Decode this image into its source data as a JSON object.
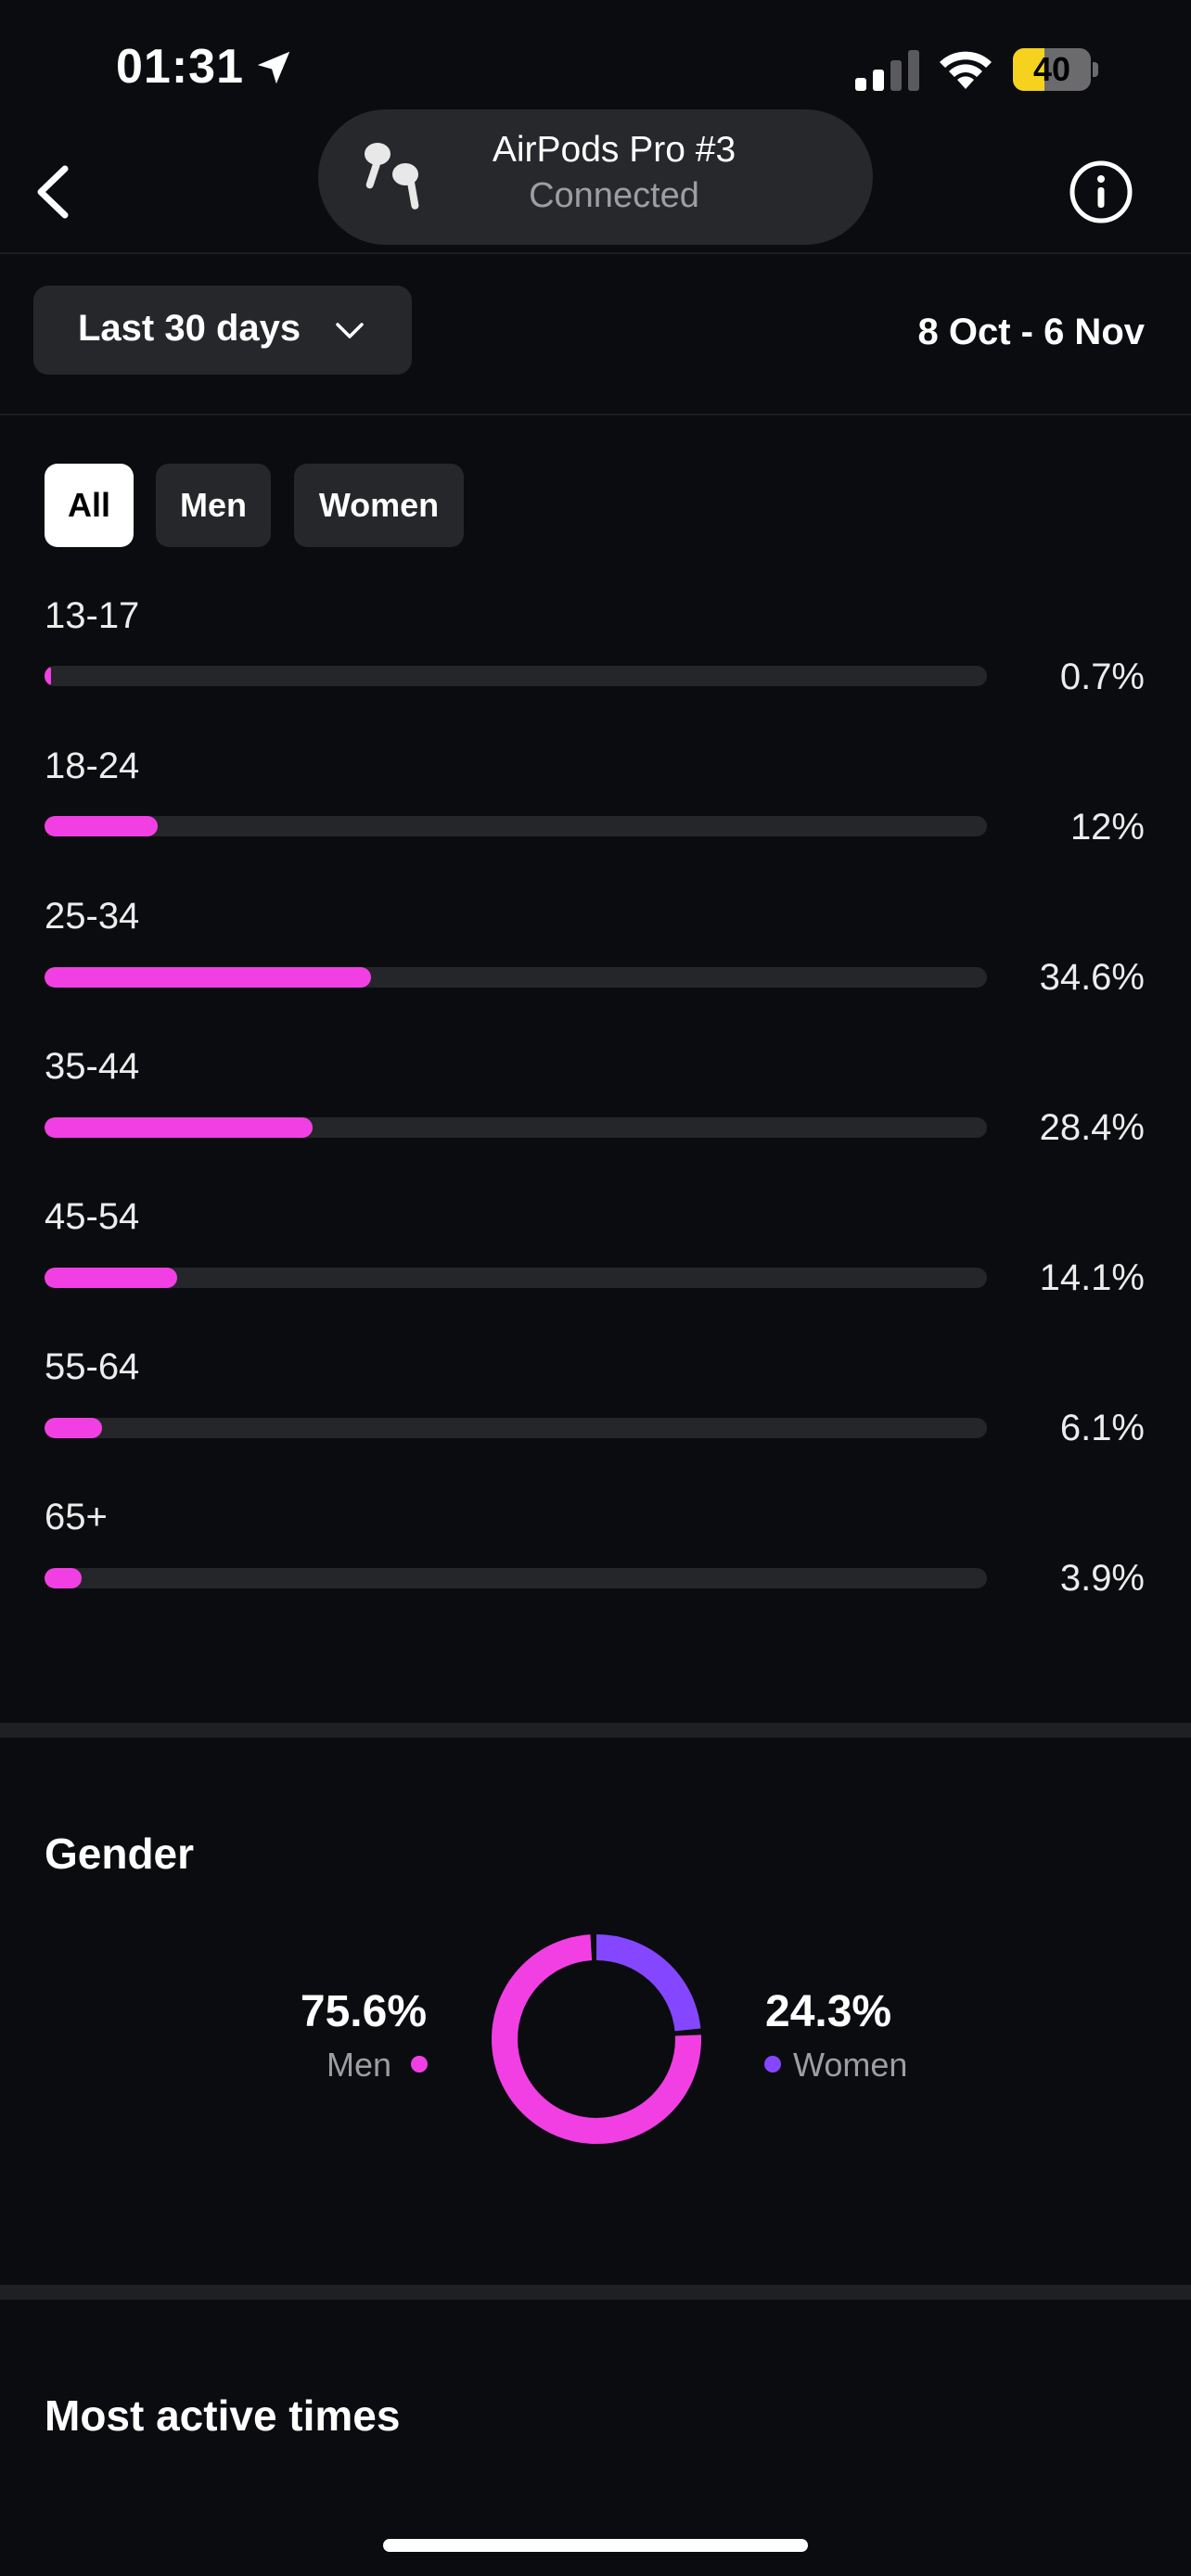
{
  "status_bar": {
    "time": "01:31",
    "battery_level": "40",
    "battery_fraction": 0.4
  },
  "header": {
    "device_name": "AirPods Pro #3",
    "device_status": "Connected",
    "back_icon": "chevron-left-icon",
    "info_icon": "info-icon"
  },
  "filter": {
    "range_label": "Last 30 days",
    "date_range": "8 Oct - 6 Nov"
  },
  "tabs": [
    {
      "label": "All",
      "active": true
    },
    {
      "label": "Men",
      "active": false
    },
    {
      "label": "Women",
      "active": false
    }
  ],
  "age": {
    "rows": [
      {
        "label": "13-17",
        "value": "0.7%",
        "fraction": 0.007
      },
      {
        "label": "18-24",
        "value": "12%",
        "fraction": 0.12
      },
      {
        "label": "25-34",
        "value": "34.6%",
        "fraction": 0.346
      },
      {
        "label": "35-44",
        "value": "28.4%",
        "fraction": 0.284
      },
      {
        "label": "45-54",
        "value": "14.1%",
        "fraction": 0.141
      },
      {
        "label": "55-64",
        "value": "6.1%",
        "fraction": 0.061
      },
      {
        "label": "65+",
        "value": "3.9%",
        "fraction": 0.039
      }
    ]
  },
  "gender": {
    "title": "Gender",
    "men": {
      "value": "75.6%",
      "label": "Men",
      "fraction": 0.756
    },
    "women": {
      "value": "24.3%",
      "label": "Women",
      "fraction": 0.243
    }
  },
  "active_times": {
    "title": "Most active times"
  },
  "colors": {
    "accent_pink": "#f23fe3",
    "accent_purple": "#8447ff",
    "background": "#0b0c10",
    "track": "#25262a"
  }
}
